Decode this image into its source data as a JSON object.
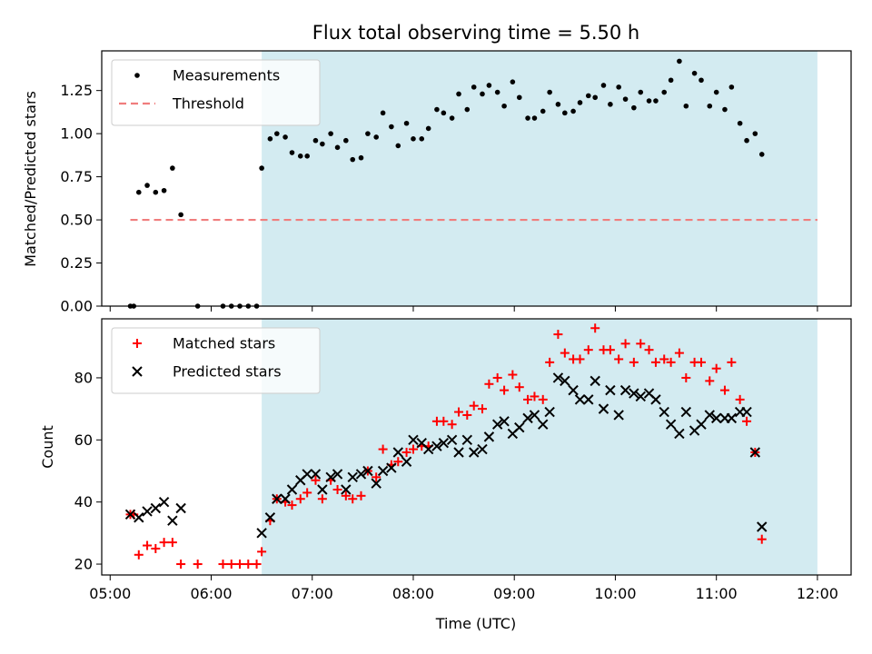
{
  "figure": {
    "title": "Flux total observing time = 5.50 h",
    "xlabel": "Time (UTC)"
  },
  "chart_data": [
    {
      "type": "scatter",
      "panel": "top",
      "ylabel": "Matched/Predicted stars",
      "x_range": [
        "04:55",
        "12:20"
      ],
      "ylim": [
        0,
        1.48
      ],
      "y_ticks": [
        0.0,
        0.25,
        0.5,
        0.75,
        1.0,
        1.25
      ],
      "y_tick_labels": [
        "0.00",
        "0.25",
        "0.50",
        "0.75",
        "1.00",
        "1.25"
      ],
      "x_ticks": [
        "05:00",
        "06:00",
        "07:00",
        "08:00",
        "09:00",
        "10:00",
        "11:00",
        "12:00"
      ],
      "shaded_region": {
        "start": "06:30",
        "end": "12:00",
        "color": "#d3ebf1"
      },
      "legend_position": "top-left",
      "series": [
        {
          "name": "Measurements",
          "marker": "dot",
          "color": "#000000",
          "points": [
            [
              "05:12",
              0.0
            ],
            [
              "05:14",
              0.0
            ],
            [
              "05:17",
              0.66
            ],
            [
              "05:22",
              0.7
            ],
            [
              "05:27",
              0.66
            ],
            [
              "05:32",
              0.67
            ],
            [
              "05:37",
              0.8
            ],
            [
              "05:42",
              0.53
            ],
            [
              "05:52",
              0.0
            ],
            [
              "06:07",
              0.0
            ],
            [
              "06:12",
              0.0
            ],
            [
              "06:17",
              0.0
            ],
            [
              "06:22",
              0.0
            ],
            [
              "06:27",
              0.0
            ],
            [
              "06:30",
              0.8
            ],
            [
              "06:35",
              0.97
            ],
            [
              "06:39",
              1.0
            ],
            [
              "06:44",
              0.98
            ],
            [
              "06:48",
              0.89
            ],
            [
              "06:53",
              0.87
            ],
            [
              "06:57",
              0.87
            ],
            [
              "07:02",
              0.96
            ],
            [
              "07:06",
              0.94
            ],
            [
              "07:11",
              1.0
            ],
            [
              "07:15",
              0.92
            ],
            [
              "07:20",
              0.96
            ],
            [
              "07:24",
              0.85
            ],
            [
              "07:29",
              0.86
            ],
            [
              "07:33",
              1.0
            ],
            [
              "07:38",
              0.98
            ],
            [
              "07:42",
              1.12
            ],
            [
              "07:47",
              1.04
            ],
            [
              "07:51",
              0.93
            ],
            [
              "07:56",
              1.06
            ],
            [
              "08:00",
              0.97
            ],
            [
              "08:05",
              0.97
            ],
            [
              "08:09",
              1.03
            ],
            [
              "08:14",
              1.14
            ],
            [
              "08:18",
              1.12
            ],
            [
              "08:23",
              1.09
            ],
            [
              "08:27",
              1.23
            ],
            [
              "08:32",
              1.14
            ],
            [
              "08:36",
              1.27
            ],
            [
              "08:41",
              1.23
            ],
            [
              "08:45",
              1.28
            ],
            [
              "08:50",
              1.24
            ],
            [
              "08:54",
              1.16
            ],
            [
              "08:59",
              1.3
            ],
            [
              "09:03",
              1.21
            ],
            [
              "09:08",
              1.09
            ],
            [
              "09:12",
              1.09
            ],
            [
              "09:17",
              1.13
            ],
            [
              "09:21",
              1.24
            ],
            [
              "09:26",
              1.17
            ],
            [
              "09:30",
              1.12
            ],
            [
              "09:35",
              1.13
            ],
            [
              "09:39",
              1.18
            ],
            [
              "09:44",
              1.22
            ],
            [
              "09:48",
              1.21
            ],
            [
              "09:53",
              1.28
            ],
            [
              "09:57",
              1.17
            ],
            [
              "10:02",
              1.27
            ],
            [
              "10:06",
              1.2
            ],
            [
              "10:11",
              1.15
            ],
            [
              "10:15",
              1.24
            ],
            [
              "10:20",
              1.19
            ],
            [
              "10:24",
              1.19
            ],
            [
              "10:29",
              1.24
            ],
            [
              "10:33",
              1.31
            ],
            [
              "10:38",
              1.42
            ],
            [
              "10:42",
              1.16
            ],
            [
              "10:47",
              1.35
            ],
            [
              "10:51",
              1.31
            ],
            [
              "10:56",
              1.16
            ],
            [
              "11:00",
              1.24
            ],
            [
              "11:05",
              1.14
            ],
            [
              "11:09",
              1.27
            ],
            [
              "11:14",
              1.06
            ],
            [
              "11:18",
              0.96
            ],
            [
              "11:23",
              1.0
            ],
            [
              "11:27",
              0.88
            ]
          ]
        },
        {
          "name": "Threshold",
          "marker": "dashed-line",
          "color": "#f07d7d",
          "points": [
            [
              "05:12",
              0.5
            ],
            [
              "12:00",
              0.5
            ]
          ]
        }
      ]
    },
    {
      "type": "scatter",
      "panel": "bottom",
      "ylabel": "Count",
      "x_range": [
        "04:55",
        "12:20"
      ],
      "ylim": [
        16.5,
        99
      ],
      "y_ticks": [
        20,
        40,
        60,
        80
      ],
      "y_tick_labels": [
        "20",
        "40",
        "60",
        "80"
      ],
      "x_ticks": [
        "05:00",
        "06:00",
        "07:00",
        "08:00",
        "09:00",
        "10:00",
        "11:00",
        "12:00"
      ],
      "x_tick_labels": [
        "05:00",
        "06:00",
        "07:00",
        "08:00",
        "09:00",
        "10:00",
        "11:00",
        "12:00"
      ],
      "shaded_region": {
        "start": "06:30",
        "end": "12:00",
        "color": "#d3ebf1"
      },
      "legend_position": "top-left",
      "series": [
        {
          "name": "Matched stars",
          "marker": "plus",
          "color": "#ff0000",
          "points": [
            [
              "05:12",
              36
            ],
            [
              "05:14",
              36
            ],
            [
              "05:17",
              23
            ],
            [
              "05:22",
              26
            ],
            [
              "05:27",
              25
            ],
            [
              "05:32",
              27
            ],
            [
              "05:37",
              27
            ],
            [
              "05:42",
              20
            ],
            [
              "05:52",
              20
            ],
            [
              "06:07",
              20
            ],
            [
              "06:12",
              20
            ],
            [
              "06:17",
              20
            ],
            [
              "06:22",
              20
            ],
            [
              "06:27",
              20
            ],
            [
              "06:30",
              24
            ],
            [
              "06:35",
              34
            ],
            [
              "06:39",
              41
            ],
            [
              "06:44",
              40
            ],
            [
              "06:48",
              39
            ],
            [
              "06:53",
              41
            ],
            [
              "06:57",
              43
            ],
            [
              "07:02",
              47
            ],
            [
              "07:06",
              41
            ],
            [
              "07:11",
              47
            ],
            [
              "07:15",
              44
            ],
            [
              "07:20",
              42
            ],
            [
              "07:24",
              41
            ],
            [
              "07:29",
              42
            ],
            [
              "07:33",
              50
            ],
            [
              "07:38",
              48
            ],
            [
              "07:42",
              57
            ],
            [
              "07:47",
              52
            ],
            [
              "07:51",
              53
            ],
            [
              "07:56",
              56
            ],
            [
              "08:00",
              57
            ],
            [
              "08:05",
              58
            ],
            [
              "08:09",
              58
            ],
            [
              "08:14",
              66
            ],
            [
              "08:18",
              66
            ],
            [
              "08:23",
              65
            ],
            [
              "08:27",
              69
            ],
            [
              "08:32",
              68
            ],
            [
              "08:36",
              71
            ],
            [
              "08:41",
              70
            ],
            [
              "08:45",
              78
            ],
            [
              "08:50",
              80
            ],
            [
              "08:54",
              76
            ],
            [
              "08:59",
              81
            ],
            [
              "09:03",
              77
            ],
            [
              "09:08",
              73
            ],
            [
              "09:12",
              74
            ],
            [
              "09:17",
              73
            ],
            [
              "09:21",
              85
            ],
            [
              "09:26",
              94
            ],
            [
              "09:30",
              88
            ],
            [
              "09:35",
              86
            ],
            [
              "09:39",
              86
            ],
            [
              "09:44",
              89
            ],
            [
              "09:48",
              96
            ],
            [
              "09:53",
              89
            ],
            [
              "09:57",
              89
            ],
            [
              "10:02",
              86
            ],
            [
              "10:06",
              91
            ],
            [
              "10:11",
              85
            ],
            [
              "10:15",
              91
            ],
            [
              "10:20",
              89
            ],
            [
              "10:24",
              85
            ],
            [
              "10:29",
              86
            ],
            [
              "10:33",
              85
            ],
            [
              "10:38",
              88
            ],
            [
              "10:42",
              80
            ],
            [
              "10:47",
              85
            ],
            [
              "10:51",
              85
            ],
            [
              "10:56",
              79
            ],
            [
              "11:00",
              83
            ],
            [
              "11:05",
              76
            ],
            [
              "11:09",
              85
            ],
            [
              "11:14",
              73
            ],
            [
              "11:18",
              66
            ],
            [
              "11:23",
              56
            ],
            [
              "11:27",
              28
            ]
          ]
        },
        {
          "name": "Predicted stars",
          "marker": "x",
          "color": "#000000",
          "points": [
            [
              "05:12",
              36
            ],
            [
              "05:17",
              35
            ],
            [
              "05:22",
              37
            ],
            [
              "05:27",
              38
            ],
            [
              "05:32",
              40
            ],
            [
              "05:37",
              34
            ],
            [
              "05:42",
              38
            ],
            [
              "06:30",
              30
            ],
            [
              "06:35",
              35
            ],
            [
              "06:39",
              41
            ],
            [
              "06:44",
              41
            ],
            [
              "06:48",
              44
            ],
            [
              "06:53",
              47
            ],
            [
              "06:57",
              49
            ],
            [
              "07:02",
              49
            ],
            [
              "07:06",
              44
            ],
            [
              "07:11",
              48
            ],
            [
              "07:15",
              49
            ],
            [
              "07:20",
              44
            ],
            [
              "07:24",
              48
            ],
            [
              "07:29",
              49
            ],
            [
              "07:33",
              50
            ],
            [
              "07:38",
              46
            ],
            [
              "07:42",
              50
            ],
            [
              "07:47",
              51
            ],
            [
              "07:51",
              56
            ],
            [
              "07:56",
              53
            ],
            [
              "08:00",
              60
            ],
            [
              "08:05",
              59
            ],
            [
              "08:09",
              57
            ],
            [
              "08:14",
              58
            ],
            [
              "08:18",
              59
            ],
            [
              "08:23",
              60
            ],
            [
              "08:27",
              56
            ],
            [
              "08:32",
              60
            ],
            [
              "08:36",
              56
            ],
            [
              "08:41",
              57
            ],
            [
              "08:45",
              61
            ],
            [
              "08:50",
              65
            ],
            [
              "08:54",
              66
            ],
            [
              "08:59",
              62
            ],
            [
              "09:03",
              64
            ],
            [
              "09:08",
              67
            ],
            [
              "09:12",
              68
            ],
            [
              "09:17",
              65
            ],
            [
              "09:21",
              69
            ],
            [
              "09:26",
              80
            ],
            [
              "09:30",
              79
            ],
            [
              "09:35",
              76
            ],
            [
              "09:39",
              73
            ],
            [
              "09:44",
              73
            ],
            [
              "09:48",
              79
            ],
            [
              "09:53",
              70
            ],
            [
              "09:57",
              76
            ],
            [
              "10:02",
              68
            ],
            [
              "10:06",
              76
            ],
            [
              "10:11",
              75
            ],
            [
              "10:15",
              74
            ],
            [
              "10:20",
              75
            ],
            [
              "10:24",
              73
            ],
            [
              "10:29",
              69
            ],
            [
              "10:33",
              65
            ],
            [
              "10:38",
              62
            ],
            [
              "10:42",
              69
            ],
            [
              "10:47",
              63
            ],
            [
              "10:51",
              65
            ],
            [
              "10:56",
              68
            ],
            [
              "11:00",
              67
            ],
            [
              "11:05",
              67
            ],
            [
              "11:09",
              67
            ],
            [
              "11:14",
              69
            ],
            [
              "11:18",
              69
            ],
            [
              "11:23",
              56
            ],
            [
              "11:27",
              32
            ]
          ]
        }
      ]
    }
  ]
}
